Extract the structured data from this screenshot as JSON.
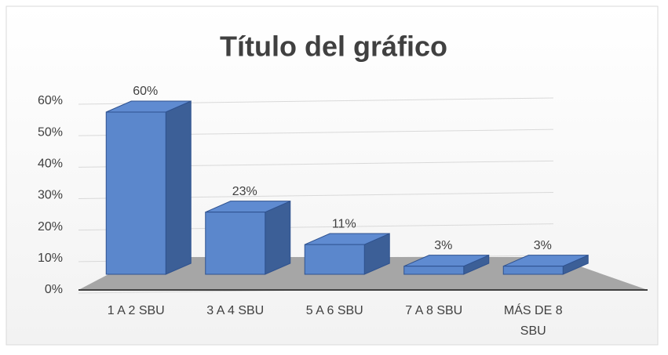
{
  "chart_data": {
    "type": "bar3d",
    "title": "Título del gráfico",
    "categories": [
      "1 A 2 SBU",
      "3 A 4 SBU",
      "5 A 6 SBU",
      "7 A 8 SBU",
      "MÁS DE 8 SBU"
    ],
    "values": [
      60,
      23,
      11,
      3,
      3
    ],
    "value_labels": [
      "60%",
      "23%",
      "11%",
      "3%",
      "3%"
    ],
    "color": "#4472c4",
    "ylim": [
      0,
      60
    ],
    "yticks": [
      {
        "value": 0,
        "label": "0%"
      },
      {
        "value": 10,
        "label": "10%"
      },
      {
        "value": 20,
        "label": "20%"
      },
      {
        "value": 30,
        "label": "30%"
      },
      {
        "value": 40,
        "label": "40%"
      },
      {
        "value": 50,
        "label": "50%"
      },
      {
        "value": 60,
        "label": "60%"
      }
    ],
    "grid": true
  }
}
